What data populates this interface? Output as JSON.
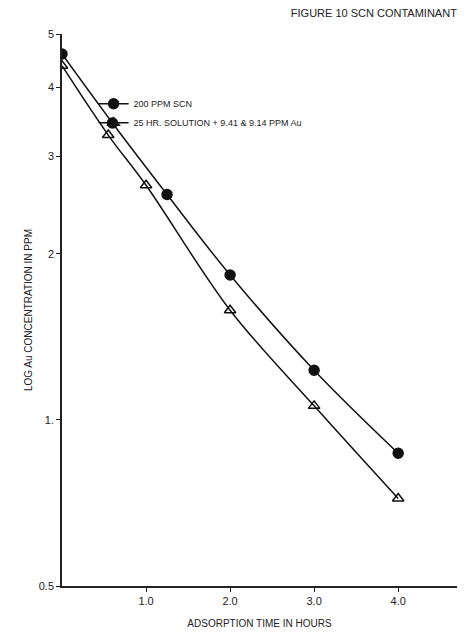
{
  "chart_data": {
    "type": "line",
    "title": "FIGURE 10 SCN CONTAMINANT",
    "x_label": "ADSORPTION TIME IN HOURS",
    "y_label": "LOG Au CONCENTRATION IN PPM",
    "log": "y",
    "grid": false,
    "legend": "upper left",
    "xlim": [
      0,
      4.7
    ],
    "ylim": [
      0.5,
      5
    ],
    "xticks": [
      {
        "value": 1,
        "label": "1.0"
      },
      {
        "value": 2,
        "label": "2.0"
      },
      {
        "value": 3,
        "label": "3.0"
      },
      {
        "value": 4,
        "label": "4.0"
      }
    ],
    "yticks": [
      0.5,
      {
        "value": 1,
        "label": "1."
      },
      2,
      3,
      4,
      5
    ],
    "series": [
      {
        "name": "200 PPM SCN",
        "color": "#111111",
        "marker": "circle",
        "line_style": "solid",
        "x": [
          0,
          0.6,
          1.25,
          2.0,
          3.0,
          4.0
        ],
        "values": [
          4.6,
          3.45,
          2.56,
          1.83,
          1.23,
          0.87
        ]
      },
      {
        "name": "25 HR. SOLUTION + 9.41 & 9.14 PPM Au",
        "color": "#111111",
        "marker": "triangle",
        "line_style": "solid",
        "x": [
          0,
          0.55,
          1.0,
          2.0,
          3.0,
          4.0
        ],
        "values": [
          4.38,
          3.28,
          2.66,
          1.58,
          1.06,
          0.72
        ]
      }
    ]
  }
}
